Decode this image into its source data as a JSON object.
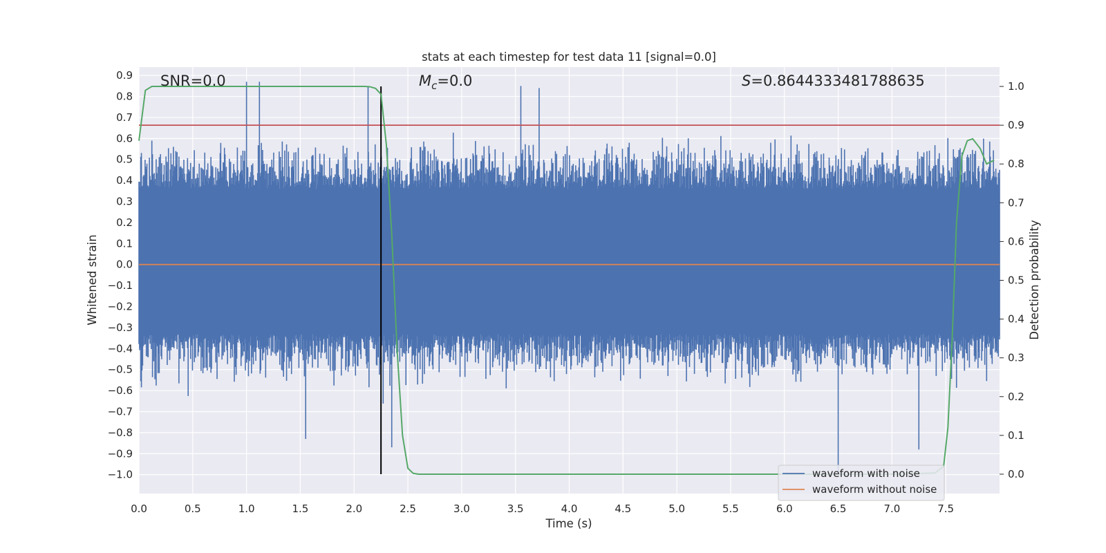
{
  "chart_data": {
    "type": "line",
    "title": "stats at each timestep for test data 11 [signal=0.0]",
    "xlabel": "Time (s)",
    "ylabel_left": "Whitened strain",
    "ylabel_right": "Detection probability",
    "xlim": [
      0.0,
      8.0
    ],
    "ylim_left": [
      -1.09,
      0.94
    ],
    "ylim_right": [
      -0.05,
      1.05
    ],
    "xticks": [
      "0.0",
      "0.5",
      "1.0",
      "1.5",
      "2.0",
      "2.5",
      "3.0",
      "3.5",
      "4.0",
      "4.5",
      "5.0",
      "5.5",
      "6.0",
      "6.5",
      "7.0",
      "7.5"
    ],
    "xtick_values": [
      0.0,
      0.5,
      1.0,
      1.5,
      2.0,
      2.5,
      3.0,
      3.5,
      4.0,
      4.5,
      5.0,
      5.5,
      6.0,
      6.5,
      7.0,
      7.5
    ],
    "yticks_left": [
      "0.9",
      "0.8",
      "0.7",
      "0.6",
      "0.5",
      "0.4",
      "0.3",
      "0.2",
      "0.1",
      "0.0",
      "−0.1",
      "−0.2",
      "−0.3",
      "−0.4",
      "−0.5",
      "−0.6",
      "−0.7",
      "−0.8",
      "−0.9",
      "−1.0"
    ],
    "ytick_left_values": [
      0.9,
      0.8,
      0.7,
      0.6,
      0.5,
      0.4,
      0.3,
      0.2,
      0.1,
      0.0,
      -0.1,
      -0.2,
      -0.3,
      -0.4,
      -0.5,
      -0.6,
      -0.7,
      -0.8,
      -0.9,
      -1.0
    ],
    "yticks_right": [
      "1.0",
      "0.9",
      "0.8",
      "0.7",
      "0.6",
      "0.5",
      "0.4",
      "0.3",
      "0.2",
      "0.1",
      "0.0"
    ],
    "ytick_right_values": [
      1.0,
      0.9,
      0.8,
      0.7,
      0.6,
      0.5,
      0.4,
      0.3,
      0.2,
      0.1,
      0.0
    ],
    "grid": true,
    "legend_position": "lower-right",
    "annotations": {
      "snr": "SNR=0.0",
      "mc_symbol": "M",
      "mc_sub": "c",
      "mc_value": "=0.0",
      "s_symbol": "S",
      "s_value": "=0.8644333481788635"
    },
    "series": [
      {
        "name": "waveform with noise",
        "axis": "left",
        "color": "#4c72b0",
        "style": "dense noise",
        "envelope_typical": [
          -0.45,
          0.55
        ],
        "x_range": [
          0.0,
          8.0
        ],
        "notable_peaks": [
          {
            "x": 1.0,
            "y": 0.87
          },
          {
            "x": 1.12,
            "y": 0.87
          },
          {
            "x": 2.13,
            "y": 0.85
          },
          {
            "x": 3.55,
            "y": 0.85
          },
          {
            "x": 3.72,
            "y": 0.84
          },
          {
            "x": 6.5,
            "y": -1.0
          },
          {
            "x": 2.35,
            "y": -0.87
          },
          {
            "x": 1.55,
            "y": -0.83
          },
          {
            "x": 7.25,
            "y": -0.88
          }
        ]
      },
      {
        "name": "waveform without noise",
        "axis": "left",
        "color": "#dd8452",
        "x": [
          0.0,
          8.0
        ],
        "y": [
          0.0,
          0.0
        ]
      },
      {
        "name": "",
        "axis": "right",
        "color": "#55a868",
        "x": [
          0.0,
          0.06,
          0.12,
          0.2,
          0.5,
          1.0,
          1.5,
          2.0,
          2.1,
          2.15,
          2.2,
          2.25,
          2.3,
          2.35,
          2.4,
          2.45,
          2.5,
          2.55,
          2.6,
          2.7,
          3.0,
          4.0,
          5.0,
          6.0,
          7.0,
          7.4,
          7.48,
          7.52,
          7.56,
          7.6,
          7.65,
          7.7,
          7.75,
          7.82,
          7.88,
          7.95
        ],
        "y": [
          0.86,
          0.99,
          1.0,
          1.0,
          1.0,
          1.0,
          1.0,
          1.0,
          1.0,
          0.999,
          0.995,
          0.98,
          0.85,
          0.62,
          0.32,
          0.1,
          0.015,
          0.002,
          0.0,
          0.0,
          0.0,
          0.0,
          0.0,
          0.0,
          0.0,
          0.003,
          0.02,
          0.12,
          0.35,
          0.65,
          0.82,
          0.86,
          0.865,
          0.84,
          0.8,
          0.81
        ]
      }
    ],
    "hlines": [
      {
        "axis": "right",
        "y": 0.9,
        "color": "#c44e52"
      }
    ],
    "vlines": [
      {
        "x": 2.25,
        "axis": "right",
        "y_range": [
          0.0,
          1.0
        ],
        "color": "#000000"
      }
    ]
  }
}
